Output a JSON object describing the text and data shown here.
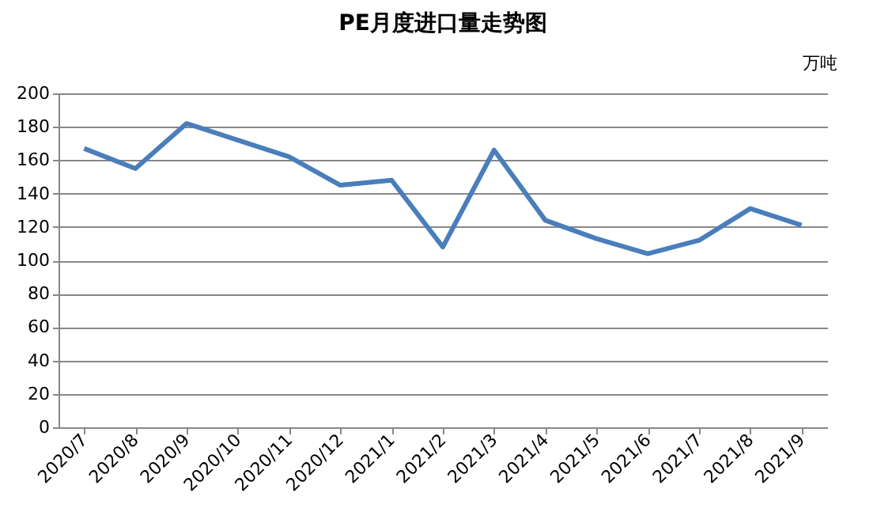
{
  "chart_data": {
    "type": "line",
    "title": "PE月度进口量走势图",
    "ylabel": "万吨",
    "categories": [
      "2020/7",
      "2020/8",
      "2020/9",
      "2020/10",
      "2020/11",
      "2020/12",
      "2021/1",
      "2021/2",
      "2021/3",
      "2021/4",
      "2021/5",
      "2021/6",
      "2021/7",
      "2021/8",
      "2021/9"
    ],
    "series": [
      {
        "color": "#4a7ebb",
        "values": [
          167,
          155,
          182,
          172,
          162,
          145,
          148,
          108,
          166,
          124,
          113,
          104,
          112,
          131,
          121
        ]
      }
    ],
    "ylim": [
      0,
      200
    ],
    "yticks": [
      0,
      20,
      40,
      60,
      80,
      100,
      120,
      140,
      160,
      180,
      200
    ],
    "grid": "y",
    "legend": false,
    "marker": "none",
    "line_style": "solid"
  }
}
